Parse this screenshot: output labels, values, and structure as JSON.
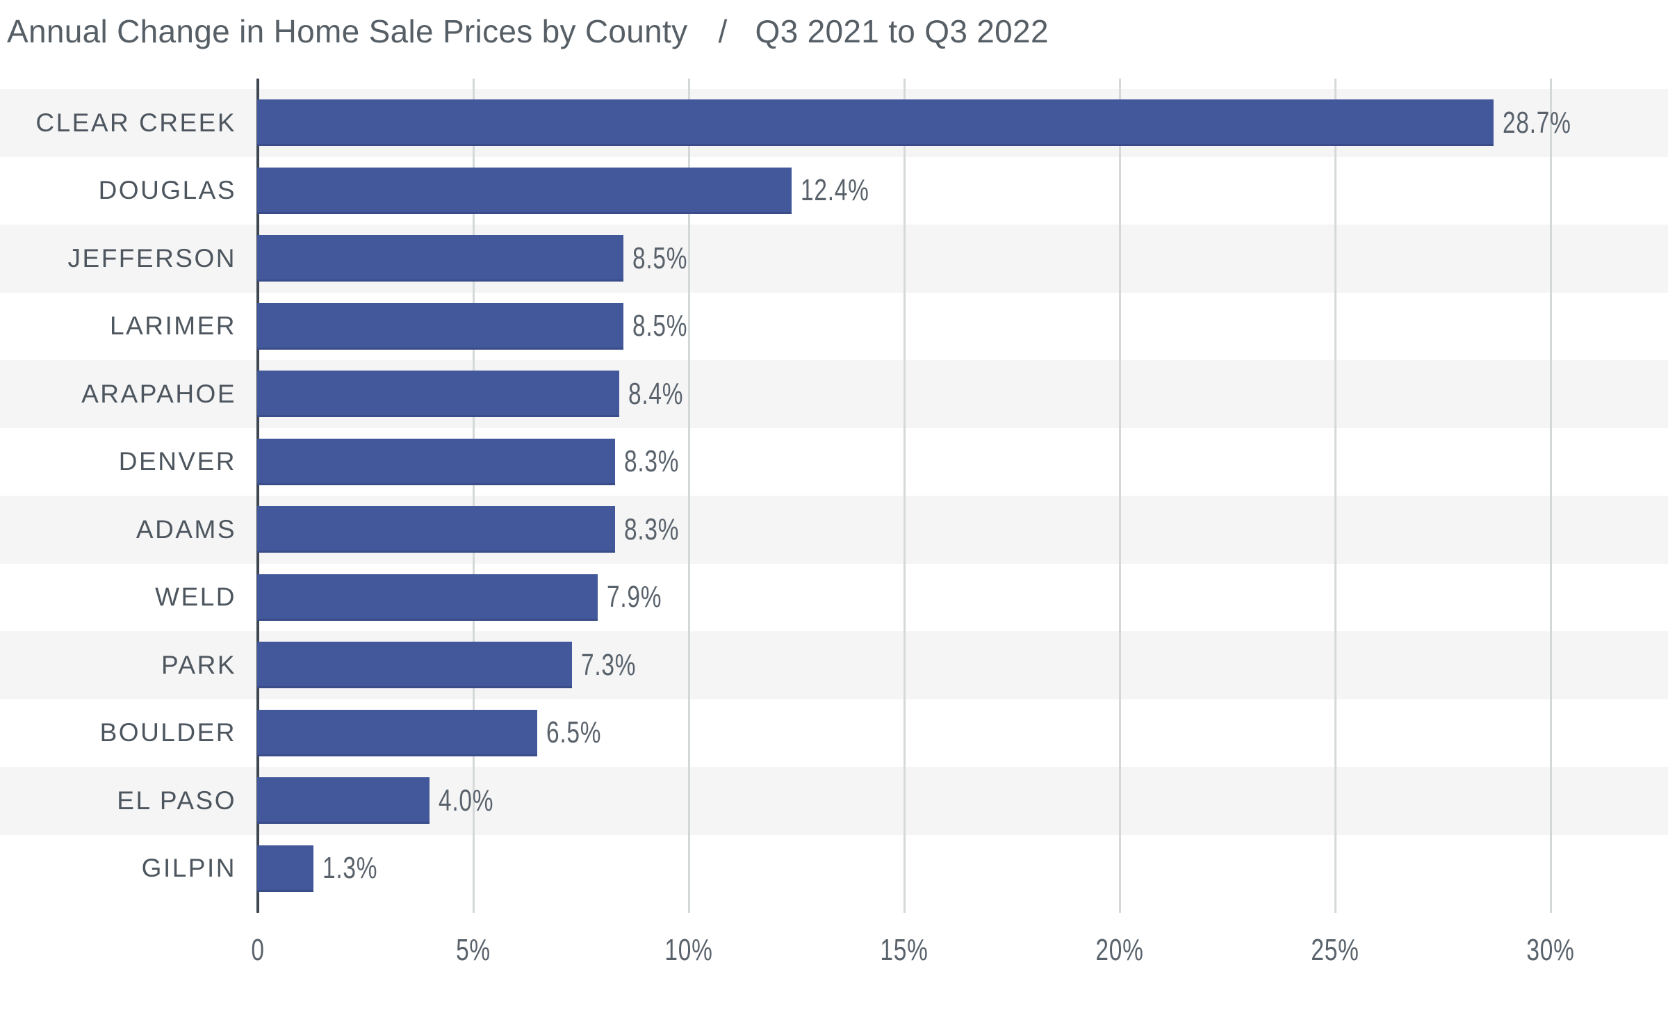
{
  "header": {
    "title": "Annual Change in Home Sale Prices by County",
    "separator": "/",
    "subtitle": "Q3 2021 to Q3 2022"
  },
  "chart_data": {
    "type": "bar",
    "orientation": "horizontal",
    "title": "Annual Change in Home Sale Prices by County / Q3 2021 to Q3 2022",
    "categories": [
      "CLEAR CREEK",
      "DOUGLAS",
      "JEFFERSON",
      "LARIMER",
      "ARAPAHOE",
      "DENVER",
      "ADAMS",
      "WELD",
      "PARK",
      "BOULDER",
      "EL PASO",
      "GILPIN"
    ],
    "values": [
      28.7,
      12.4,
      8.5,
      8.5,
      8.4,
      8.3,
      8.3,
      7.9,
      7.3,
      6.5,
      4.0,
      1.3
    ],
    "value_labels": [
      "28.7%",
      "12.4%",
      "8.5%",
      "8.5%",
      "8.4%",
      "8.3%",
      "8.3%",
      "7.9%",
      "7.3%",
      "6.5%",
      "4.0%",
      "1.3%"
    ],
    "xlabel": "",
    "ylabel": "",
    "x_ticks": [
      0,
      5,
      10,
      15,
      20,
      25,
      30
    ],
    "x_tick_labels": [
      "0",
      "5%",
      "10%",
      "15%",
      "20%",
      "25%",
      "30%"
    ],
    "xlim": [
      0,
      32.7
    ],
    "grid": "vertical-gridlines-at-ticks",
    "legend": "none",
    "row_striping": "alternating, first row shaded"
  },
  "colors": {
    "bar": "#42589B",
    "stripe": "#F5F5F6",
    "background": "#FFFFFF",
    "axis_line": "#3E4751",
    "gridline": "#D5D8D9",
    "title_text": "#575F66",
    "category_text": "#4D565E",
    "value_text": "#59626B"
  }
}
